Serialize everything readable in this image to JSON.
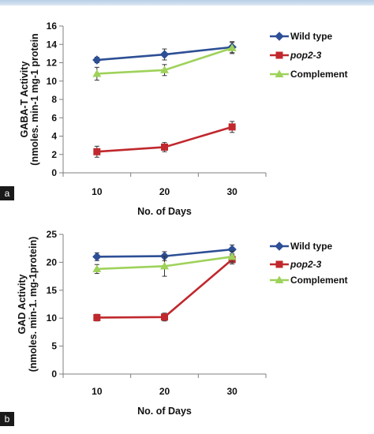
{
  "colors": {
    "Wild type": "#2d4f95",
    "pop2-3": "#c0282d",
    "Complement": "#9ed25a",
    "axis": "#7f7f7f"
  },
  "chart_data": [
    {
      "type": "line",
      "panel_label": "a",
      "x": [
        10,
        20,
        30
      ],
      "xlabel": "No. of Days",
      "ylabel_lines": [
        "GABA-T Activity",
        "(nmoles. min-1 mg-1 protein"
      ],
      "ylim": [
        0,
        16
      ],
      "yticks": [
        0,
        2,
        4,
        6,
        8,
        10,
        12,
        14,
        16
      ],
      "legend_position": "right",
      "series": [
        {
          "name": "Wild type",
          "marker": "diamond",
          "values": [
            12.3,
            12.9,
            13.7
          ],
          "errors": [
            0.3,
            0.6,
            0.6
          ]
        },
        {
          "name": "pop2-3",
          "marker": "square",
          "values": [
            2.3,
            2.8,
            5.0
          ],
          "errors": [
            0.6,
            0.5,
            0.6
          ]
        },
        {
          "name": "Complement",
          "marker": "triangle",
          "values": [
            10.8,
            11.2,
            13.6
          ],
          "errors": [
            0.7,
            0.6,
            0.6
          ]
        }
      ]
    },
    {
      "type": "line",
      "panel_label": "b",
      "x": [
        10,
        20,
        30
      ],
      "xlabel": "No. of Days",
      "ylabel_lines": [
        "GAD Activity",
        "(nmoles. min-1. mg-1protein)"
      ],
      "ylim": [
        0,
        25
      ],
      "yticks": [
        0,
        5,
        10,
        15,
        20,
        25
      ],
      "legend_position": "right",
      "series": [
        {
          "name": "Wild type",
          "marker": "diamond",
          "values": [
            21.0,
            21.1,
            22.3
          ],
          "errors": [
            0.7,
            0.8,
            0.8
          ]
        },
        {
          "name": "pop2-3",
          "marker": "square",
          "values": [
            10.1,
            10.2,
            20.5
          ],
          "errors": [
            0.6,
            0.7,
            0.8
          ]
        },
        {
          "name": "Complement",
          "marker": "triangle",
          "values": [
            18.8,
            19.3,
            21.0
          ],
          "errors": [
            0.8,
            1.8,
            1.0
          ]
        }
      ]
    }
  ]
}
